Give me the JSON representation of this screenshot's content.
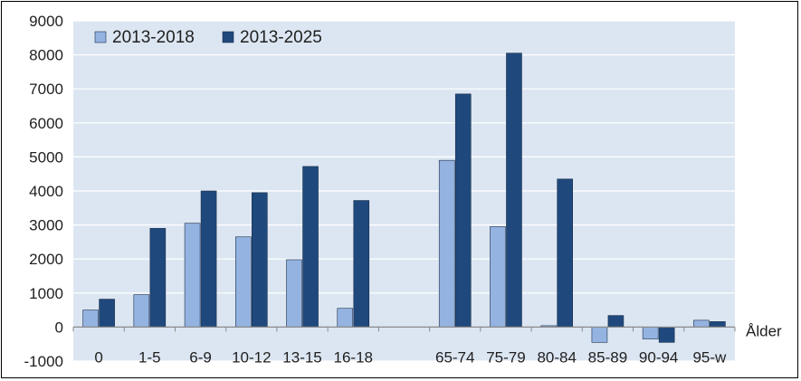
{
  "chart_data": {
    "type": "bar",
    "title": "",
    "xlabel": "Ålder",
    "ylabel": "",
    "ylim": [
      -1000,
      9000
    ],
    "yticks": [
      -1000,
      0,
      1000,
      2000,
      3000,
      4000,
      5000,
      6000,
      7000,
      8000,
      9000
    ],
    "grid": "horizontal",
    "legend_position": "top-left",
    "categories": [
      "0",
      "1-5",
      "6-9",
      "10-12",
      "13-15",
      "16-18",
      "",
      "65-74",
      "75-79",
      "80-84",
      "85-89",
      "90-94",
      "95-w"
    ],
    "series": [
      {
        "name": "2013-2018",
        "color": "#95b3e0",
        "values": [
          500,
          950,
          3050,
          2650,
          1980,
          550,
          null,
          4900,
          2950,
          40,
          -450,
          -350,
          200
        ]
      },
      {
        "name": "2013-2025",
        "color": "#1f497d",
        "values": [
          820,
          2900,
          4000,
          3950,
          4720,
          3720,
          null,
          6850,
          8050,
          4350,
          340,
          -450,
          160
        ]
      }
    ],
    "colors": {
      "plot_background": "#dce6f2",
      "gridline": "#ffffff",
      "axis": "#8a8a8a",
      "bar_outline": "#1a2e4a"
    }
  }
}
